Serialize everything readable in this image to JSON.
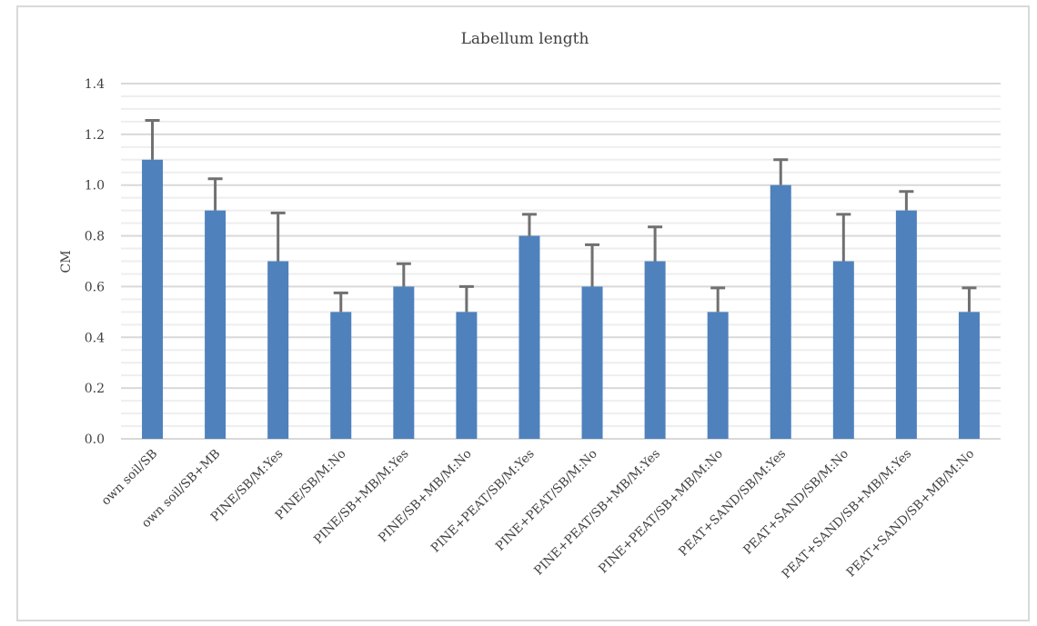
{
  "chart_data": {
    "type": "bar",
    "title": "Labellum length",
    "ylabel": "CM",
    "xlabel": "",
    "ylim": [
      0,
      1.4
    ],
    "yticks": [
      "0.0",
      "0.2",
      "0.4",
      "0.6",
      "0.8",
      "1.0",
      "1.2",
      "1.4"
    ],
    "categories": [
      "own soil/SB",
      "own soil/SB+MB",
      "PINE/SB/M:Yes",
      "PINE/SB/M:No",
      "PINE/SB+MB/M:Yes",
      "PINE/SB+MB/M:No",
      "PINE+PEAT/SB/M:Yes",
      "PINE+PEAT/SB/M:No",
      "PINE+PEAT/SB+MB/M:Yes",
      "PINE+PEAT/SB+MB/M:No",
      "PEAT+SAND/SB/M:Yes",
      "PEAT+SAND/SB/M:No",
      "PEAT+SAND/SB+MB/M:Yes",
      "PEAT+SAND/SB+MB/M:No"
    ],
    "values": [
      1.1,
      0.9,
      0.7,
      0.5,
      0.6,
      0.5,
      0.8,
      0.6,
      0.7,
      0.5,
      1.0,
      0.7,
      0.9,
      0.5
    ],
    "error_plus": [
      0.155,
      0.125,
      0.19,
      0.075,
      0.09,
      0.1,
      0.085,
      0.165,
      0.135,
      0.095,
      0.1,
      0.185,
      0.075,
      0.095
    ],
    "bar_color": "#4f81bd",
    "error_color": "#707070",
    "grid": true,
    "legend": "none"
  }
}
